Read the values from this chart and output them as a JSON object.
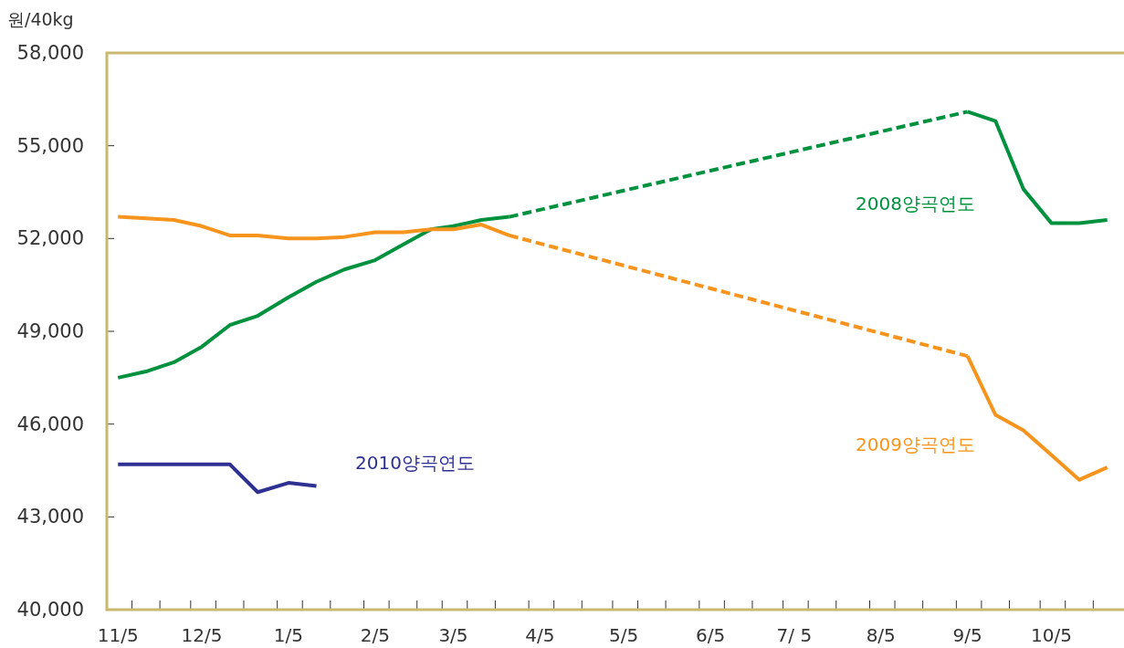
{
  "chart_data": {
    "type": "line",
    "ylabel": "원/40kg",
    "xlim": [
      "2010-11-01",
      "2011-10-31"
    ],
    "xticks": [
      {
        "value": "2010-11-05",
        "label": "11/5"
      },
      {
        "value": "2010-12-05",
        "label": "12/5"
      },
      {
        "value": "2011-01-05",
        "label": "1/5"
      },
      {
        "value": "2011-02-05",
        "label": "2/5"
      },
      {
        "value": "2011-03-05",
        "label": "3/5"
      },
      {
        "value": "2011-04-05",
        "label": "4/5"
      },
      {
        "value": "2011-05-05",
        "label": "5/5"
      },
      {
        "value": "2011-06-05",
        "label": "6/5"
      },
      {
        "value": "2011-07-05",
        "label": "7/ 5"
      },
      {
        "value": "2011-08-05",
        "label": "8/5"
      },
      {
        "value": "2011-09-05",
        "label": "9/5"
      },
      {
        "value": "2011-10-05",
        "label": "10/5"
      },
      {
        "value": "2010-11-10",
        "label": null
      },
      {
        "value": "2010-11-20",
        "label": null
      },
      {
        "value": "2010-12-01",
        "label": null
      },
      {
        "value": "2010-12-10",
        "label": null
      },
      {
        "value": "2010-12-20",
        "label": null
      },
      {
        "value": "2011-01-01",
        "label": null
      },
      {
        "value": "2011-01-10",
        "label": null
      },
      {
        "value": "2011-01-20",
        "label": null
      },
      {
        "value": "2011-02-01",
        "label": null
      },
      {
        "value": "2011-02-10",
        "label": null
      },
      {
        "value": "2011-02-20",
        "label": null
      },
      {
        "value": "2011-03-01",
        "label": null
      },
      {
        "value": "2011-03-10",
        "label": null
      },
      {
        "value": "2011-03-20",
        "label": null
      },
      {
        "value": "2011-04-01",
        "label": null
      },
      {
        "value": "2011-04-10",
        "label": null
      },
      {
        "value": "2011-04-20",
        "label": null
      },
      {
        "value": "2011-05-01",
        "label": null
      },
      {
        "value": "2011-05-10",
        "label": null
      },
      {
        "value": "2011-05-20",
        "label": null
      },
      {
        "value": "2011-06-01",
        "label": null
      },
      {
        "value": "2011-06-10",
        "label": null
      },
      {
        "value": "2011-06-20",
        "label": null
      },
      {
        "value": "2011-07-01",
        "label": null
      },
      {
        "value": "2011-07-10",
        "label": null
      },
      {
        "value": "2011-07-20",
        "label": null
      },
      {
        "value": "2011-08-01",
        "label": null
      },
      {
        "value": "2011-08-10",
        "label": null
      },
      {
        "value": "2011-08-20",
        "label": null
      },
      {
        "value": "2011-09-01",
        "label": null
      },
      {
        "value": "2011-09-10",
        "label": null
      },
      {
        "value": "2011-09-20",
        "label": null
      },
      {
        "value": "2011-10-01",
        "label": null
      },
      {
        "value": "2011-10-10",
        "label": null
      },
      {
        "value": "2011-10-20",
        "label": null
      }
    ],
    "ylim": [
      40000,
      58000
    ],
    "yticks": [
      {
        "value": 40000,
        "label": "40,000"
      },
      {
        "value": 43000,
        "label": "43,000"
      },
      {
        "value": 46000,
        "label": "46,000"
      },
      {
        "value": 49000,
        "label": "49,000"
      },
      {
        "value": 52000,
        "label": "52,000"
      },
      {
        "value": 55000,
        "label": "55,000"
      },
      {
        "value": 58000,
        "label": "58,000"
      }
    ],
    "series": [
      {
        "name": "2008양곡연도",
        "color": "#00913f",
        "x": [
          "2010-11-05",
          "2010-11-15",
          "2010-11-25",
          "2010-12-05",
          "2010-12-15",
          "2010-12-25",
          "2011-01-05",
          "2011-01-15",
          "2011-01-25",
          "2011-02-05",
          "2011-02-15",
          "2011-02-25",
          "2011-03-05",
          "2011-03-15",
          "2011-03-25"
        ],
        "values": [
          47500,
          47700,
          48000,
          48500,
          49200,
          49500,
          50100,
          50600,
          51000,
          51300,
          51800,
          52300,
          52400,
          52600,
          52700
        ]
      },
      {
        "color": "#00913f",
        "x": [
          "2011-09-05",
          "2011-09-15",
          "2011-09-25",
          "2011-10-05",
          "2011-10-15",
          "2011-10-25"
        ],
        "values": [
          56100,
          55800,
          53600,
          52500,
          52500,
          52600
        ]
      },
      {
        "color": "#00913f",
        "line_style": "dashed",
        "x": [
          "2011-03-25",
          "2011-09-05"
        ],
        "values": [
          52700,
          56100
        ]
      },
      {
        "name": "2009양곡연도",
        "color": "#f7941d",
        "x": [
          "2010-11-05",
          "2010-11-15",
          "2010-11-25",
          "2010-12-05",
          "2010-12-15",
          "2010-12-25",
          "2011-01-05",
          "2011-01-15",
          "2011-01-25",
          "2011-02-05",
          "2011-02-15",
          "2011-02-25",
          "2011-03-05",
          "2011-03-15",
          "2011-03-25"
        ],
        "values": [
          52700,
          52650,
          52600,
          52400,
          52100,
          52100,
          52000,
          52000,
          52050,
          52200,
          52200,
          52300,
          52300,
          52450,
          52100
        ]
      },
      {
        "color": "#f7941d",
        "x": [
          "2011-09-05",
          "2011-09-15",
          "2011-09-25",
          "2011-10-05",
          "2011-10-15",
          "2011-10-25"
        ],
        "values": [
          48200,
          46300,
          45800,
          45000,
          44200,
          44600
        ]
      },
      {
        "color": "#f7941d",
        "line_style": "dashed",
        "x": [
          "2011-03-25",
          "2011-09-05"
        ],
        "values": [
          52100,
          48200
        ]
      },
      {
        "name": "2010양곡연도",
        "color": "#2e3192",
        "x": [
          "2010-11-05",
          "2010-11-15",
          "2010-11-25",
          "2010-12-05",
          "2010-12-15",
          "2010-12-25",
          "2011-01-05",
          "2011-01-15"
        ],
        "values": [
          44700,
          44700,
          44700,
          44700,
          44700,
          43800,
          44100,
          44000
        ]
      }
    ]
  }
}
